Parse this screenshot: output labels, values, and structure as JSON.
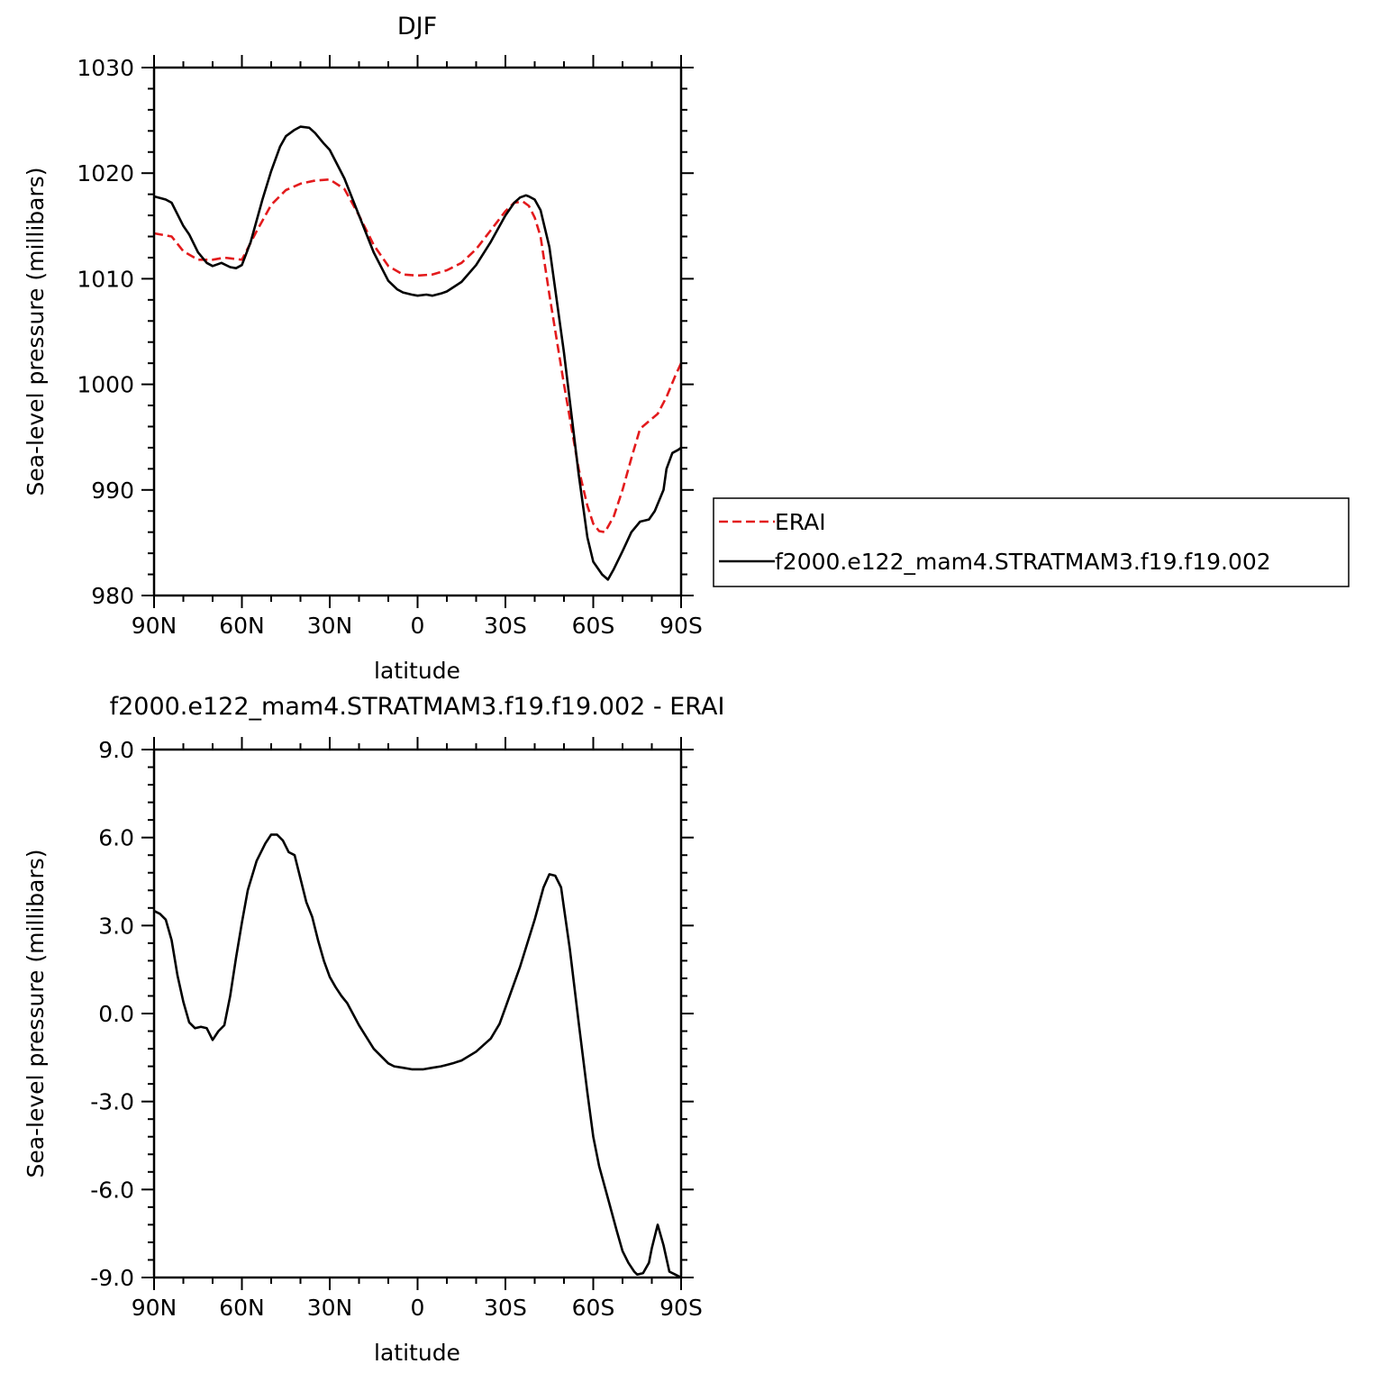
{
  "chart_data": [
    {
      "type": "line",
      "title": "DJF",
      "xlabel": "latitude",
      "ylabel": "Sea-level pressure (millibars)",
      "xlim": [
        90,
        -90
      ],
      "ylim": [
        980,
        1030
      ],
      "x_ticks": [
        90,
        60,
        30,
        0,
        -30,
        -60,
        -90
      ],
      "x_tick_labels": [
        "90N",
        "60N",
        "30N",
        "0",
        "30S",
        "60S",
        "90S"
      ],
      "y_ticks": [
        980,
        990,
        1000,
        1010,
        1020,
        1030
      ],
      "y_tick_labels": [
        "980",
        "990",
        "1000",
        "1010",
        "1020",
        "1030"
      ],
      "grid": false,
      "legend_position": "right",
      "series": [
        {
          "name": "ERAI",
          "color": "#e31a1c",
          "dash": true,
          "x": [
            90,
            86,
            84,
            80,
            75,
            70,
            66,
            60,
            55,
            50,
            45,
            40,
            35,
            30,
            25,
            20,
            15,
            10,
            5,
            0,
            -5,
            -10,
            -15,
            -20,
            -25,
            -30,
            -33,
            -36,
            -38,
            -40,
            -42,
            -45,
            -50,
            -55,
            -58,
            -60,
            -62,
            -64,
            -67,
            -70,
            -73,
            -76,
            -79,
            -82,
            -85,
            -88,
            -90
          ],
          "y": [
            1014.3,
            1014.1,
            1014.0,
            1012.6,
            1011.8,
            1011.8,
            1012.0,
            1011.8,
            1014.5,
            1017.0,
            1018.4,
            1019.0,
            1019.3,
            1019.4,
            1018.5,
            1016.0,
            1013.2,
            1011.2,
            1010.4,
            1010.3,
            1010.4,
            1010.8,
            1011.5,
            1012.8,
            1014.6,
            1016.4,
            1017.2,
            1017.3,
            1016.9,
            1015.8,
            1014.0,
            1008.5,
            1000.0,
            992.0,
            988.5,
            986.8,
            986.1,
            986.0,
            987.5,
            990.0,
            993.0,
            995.8,
            996.5,
            997.2,
            998.8,
            1000.8,
            1002.0
          ]
        },
        {
          "name": "f2000.e122_mam4.STRATMAM3.f19.f19.002",
          "color": "#000000",
          "dash": false,
          "x": [
            90,
            86,
            84,
            80,
            78,
            75,
            72,
            70,
            67,
            64,
            62,
            60,
            57,
            53,
            50,
            47,
            45,
            42,
            40,
            37,
            35,
            32,
            30,
            25,
            20,
            15,
            10,
            7,
            5,
            2,
            0,
            -3,
            -5,
            -8,
            -10,
            -15,
            -20,
            -25,
            -30,
            -33,
            -35,
            -37,
            -38,
            -40,
            -42,
            -45,
            -50,
            -55,
            -58,
            -60,
            -63,
            -65,
            -67,
            -70,
            -73,
            -76,
            -79,
            -81,
            -84,
            -85,
            -87,
            -89,
            -90
          ],
          "y": [
            1017.8,
            1017.5,
            1017.2,
            1015.0,
            1014.2,
            1012.5,
            1011.5,
            1011.2,
            1011.5,
            1011.1,
            1011.0,
            1011.3,
            1013.5,
            1017.5,
            1020.2,
            1022.5,
            1023.5,
            1024.1,
            1024.4,
            1024.3,
            1023.8,
            1022.8,
            1022.2,
            1019.5,
            1016.0,
            1012.5,
            1009.8,
            1009.0,
            1008.7,
            1008.5,
            1008.4,
            1008.5,
            1008.4,
            1008.6,
            1008.8,
            1009.7,
            1011.3,
            1013.5,
            1016.0,
            1017.2,
            1017.7,
            1017.9,
            1017.8,
            1017.5,
            1016.5,
            1013.0,
            1003.0,
            991.5,
            985.5,
            983.2,
            982.0,
            981.5,
            982.5,
            984.2,
            986.0,
            987.0,
            987.2,
            988.0,
            990.0,
            992.0,
            993.5,
            993.8,
            994.0
          ]
        }
      ]
    },
    {
      "type": "line",
      "title": "f2000.e122_mam4.STRATMAM3.f19.f19.002 - ERAI",
      "xlabel": "latitude",
      "ylabel": "Sea-level pressure (millibars)",
      "xlim": [
        90,
        -90
      ],
      "ylim": [
        -9.0,
        9.0
      ],
      "x_ticks": [
        90,
        60,
        30,
        0,
        -30,
        -60,
        -90
      ],
      "x_tick_labels": [
        "90N",
        "60N",
        "30N",
        "0",
        "30S",
        "60S",
        "90S"
      ],
      "y_ticks": [
        -9.0,
        -6.0,
        -3.0,
        0.0,
        3.0,
        6.0,
        9.0
      ],
      "y_tick_labels": [
        "-9.0",
        "-6.0",
        "-3.0",
        "0.0",
        "3.0",
        "6.0",
        "9.0"
      ],
      "grid": false,
      "series": [
        {
          "color": "#000000",
          "dash": false,
          "x": [
            90,
            88,
            86,
            84,
            82,
            80,
            78,
            76,
            74,
            72,
            70,
            68,
            66,
            64,
            62,
            60,
            58,
            55,
            52,
            50,
            48,
            46,
            44,
            42,
            40,
            38,
            36,
            34,
            32,
            30,
            28,
            26,
            24,
            20,
            15,
            12,
            10,
            8,
            5,
            2,
            0,
            -2,
            -5,
            -8,
            -10,
            -12,
            -15,
            -20,
            -25,
            -28,
            -30,
            -35,
            -40,
            -43,
            -45,
            -47,
            -49,
            -50,
            -52,
            -55,
            -58,
            -60,
            -62,
            -65,
            -68,
            -70,
            -72,
            -74,
            -75,
            -77,
            -79,
            -80,
            -82,
            -84,
            -86,
            -88,
            -90
          ],
          "y": [
            3.5,
            3.4,
            3.2,
            2.5,
            1.3,
            0.4,
            -0.3,
            -0.5,
            -0.45,
            -0.5,
            -0.9,
            -0.6,
            -0.4,
            0.6,
            1.9,
            3.1,
            4.2,
            5.2,
            5.8,
            6.1,
            6.1,
            5.9,
            5.5,
            5.4,
            4.6,
            3.8,
            3.3,
            2.5,
            1.8,
            1.25,
            0.9,
            0.6,
            0.35,
            -0.4,
            -1.2,
            -1.5,
            -1.7,
            -1.8,
            -1.85,
            -1.9,
            -1.9,
            -1.9,
            -1.85,
            -1.8,
            -1.75,
            -1.7,
            -1.6,
            -1.3,
            -0.85,
            -0.35,
            0.2,
            1.6,
            3.2,
            4.3,
            4.75,
            4.7,
            4.3,
            3.6,
            2.2,
            -0.3,
            -2.7,
            -4.2,
            -5.2,
            -6.3,
            -7.4,
            -8.1,
            -8.5,
            -8.8,
            -8.9,
            -8.85,
            -8.5,
            -8.0,
            -7.2,
            -7.9,
            -8.8,
            -8.9,
            -9.0
          ]
        }
      ]
    }
  ]
}
